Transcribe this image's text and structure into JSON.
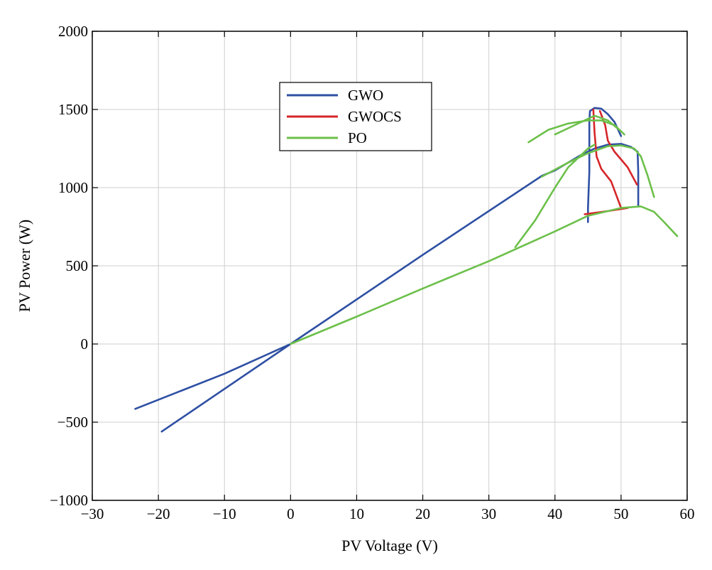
{
  "chart_data": {
    "type": "line",
    "title": "",
    "xlabel": "PV Voltage (V)",
    "ylabel": "PV Power (W)",
    "xlim": [
      -30,
      60
    ],
    "ylim": [
      -1000,
      2000
    ],
    "xticks": [
      -30,
      -20,
      -10,
      0,
      10,
      20,
      30,
      40,
      50,
      60
    ],
    "yticks": [
      -1000,
      -500,
      0,
      500,
      1000,
      1500,
      2000
    ],
    "xtick_labels": [
      "−30",
      "−20",
      "−10",
      "0",
      "10",
      "20",
      "30",
      "40",
      "50",
      "60"
    ],
    "ytick_labels": [
      "−1000",
      "−500",
      "0",
      "500",
      "1000",
      "1500",
      "2000"
    ],
    "grid": true,
    "legend_position": "upper-left-center",
    "series": [
      {
        "name": "GWO",
        "color": "#2e4fa3",
        "segments": [
          [
            [
              -23.5,
              -415
            ],
            [
              -10,
              -190
            ],
            [
              0,
              0
            ]
          ],
          [
            [
              -19.5,
              -560
            ],
            [
              0,
              0
            ],
            [
              20,
              570
            ],
            [
              38,
              1075
            ],
            [
              40,
              1110
            ],
            [
              44,
              1210
            ],
            [
              46,
              1250
            ],
            [
              48,
              1275
            ],
            [
              50,
              1280
            ],
            [
              51.5,
              1260
            ],
            [
              52.5,
              1230
            ],
            [
              52.6,
              1100
            ],
            [
              52.6,
              880
            ]
          ],
          [
            [
              45,
              780
            ],
            [
              45,
              870
            ],
            [
              45.2,
              1100
            ],
            [
              45.2,
              1300
            ],
            [
              45.2,
              1420
            ],
            [
              45.3,
              1490
            ],
            [
              46,
              1510
            ],
            [
              47,
              1505
            ],
            [
              48,
              1470
            ],
            [
              49,
              1420
            ],
            [
              50,
              1330
            ]
          ]
        ]
      },
      {
        "name": "GWOCS",
        "color": "#d6262a",
        "segments": [
          [
            [
              45.8,
              1500
            ],
            [
              46,
              1350
            ],
            [
              46.3,
              1200
            ],
            [
              47,
              1120
            ],
            [
              48.5,
              1040
            ],
            [
              50,
              870
            ]
          ],
          [
            [
              46.8,
              1490
            ],
            [
              47.6,
              1400
            ],
            [
              48,
              1300
            ],
            [
              49,
              1230
            ],
            [
              51,
              1130
            ],
            [
              52.4,
              1020
            ]
          ],
          [
            [
              44.5,
              830
            ],
            [
              48,
              850
            ],
            [
              51,
              870
            ]
          ]
        ]
      },
      {
        "name": "PO",
        "color": "#6cc04a",
        "segments": [
          [
            [
              0,
              0
            ],
            [
              10,
              175
            ],
            [
              20,
              355
            ],
            [
              30,
              530
            ],
            [
              40,
              720
            ],
            [
              45,
              820
            ],
            [
              50,
              870
            ],
            [
              53,
              880
            ],
            [
              55,
              845
            ],
            [
              56.5,
              780
            ],
            [
              58.5,
              690
            ]
          ],
          [
            [
              34,
              620
            ],
            [
              37,
              790
            ],
            [
              40,
              1000
            ],
            [
              42,
              1130
            ],
            [
              45,
              1250
            ],
            [
              46,
              1275
            ]
          ],
          [
            [
              38,
              1070
            ],
            [
              42,
              1160
            ],
            [
              45,
              1220
            ],
            [
              48,
              1265
            ],
            [
              50,
              1270
            ],
            [
              52,
              1250
            ],
            [
              53,
              1200
            ],
            [
              54,
              1080
            ],
            [
              55,
              940
            ]
          ],
          [
            [
              36,
              1290
            ],
            [
              39,
              1370
            ],
            [
              42,
              1410
            ],
            [
              45,
              1430
            ],
            [
              47,
              1430
            ],
            [
              49,
              1400
            ],
            [
              50.5,
              1340
            ]
          ],
          [
            [
              40,
              1340
            ],
            [
              43,
              1400
            ],
            [
              46,
              1460
            ],
            [
              48,
              1430
            ],
            [
              50,
              1360
            ]
          ]
        ]
      }
    ]
  }
}
